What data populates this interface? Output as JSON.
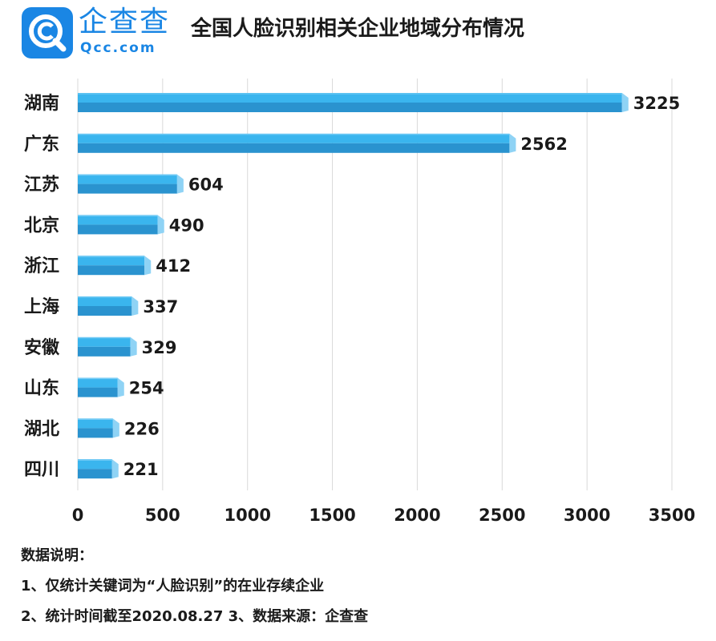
{
  "header": {
    "brand_name": "企查查",
    "brand_url": "Qcc.com",
    "title": "全国人脸识别相关企业地域分布情况",
    "accent_color": "#1a86e4"
  },
  "chart_data": {
    "type": "bar",
    "orientation": "horizontal",
    "categories": [
      "湖南",
      "广东",
      "江苏",
      "北京",
      "浙江",
      "上海",
      "安徽",
      "山东",
      "湖北",
      "四川"
    ],
    "values": [
      3225,
      2562,
      604,
      490,
      412,
      337,
      329,
      254,
      226,
      221
    ],
    "xlim": [
      0,
      3500
    ],
    "xticks": [
      "0",
      "500",
      "1000",
      "1500",
      "2000",
      "2500",
      "3000",
      "3500"
    ],
    "bar_color": "#3ab5ee",
    "bar_shade_color": "#2a93cf",
    "grid": true
  },
  "notes": {
    "heading": "数据说明：",
    "line1": "1、仅统计关键词为“人脸识别”的在业存续企业",
    "line2": "2、统计时间截至2020.08.27    3、数据来源：企查查"
  }
}
